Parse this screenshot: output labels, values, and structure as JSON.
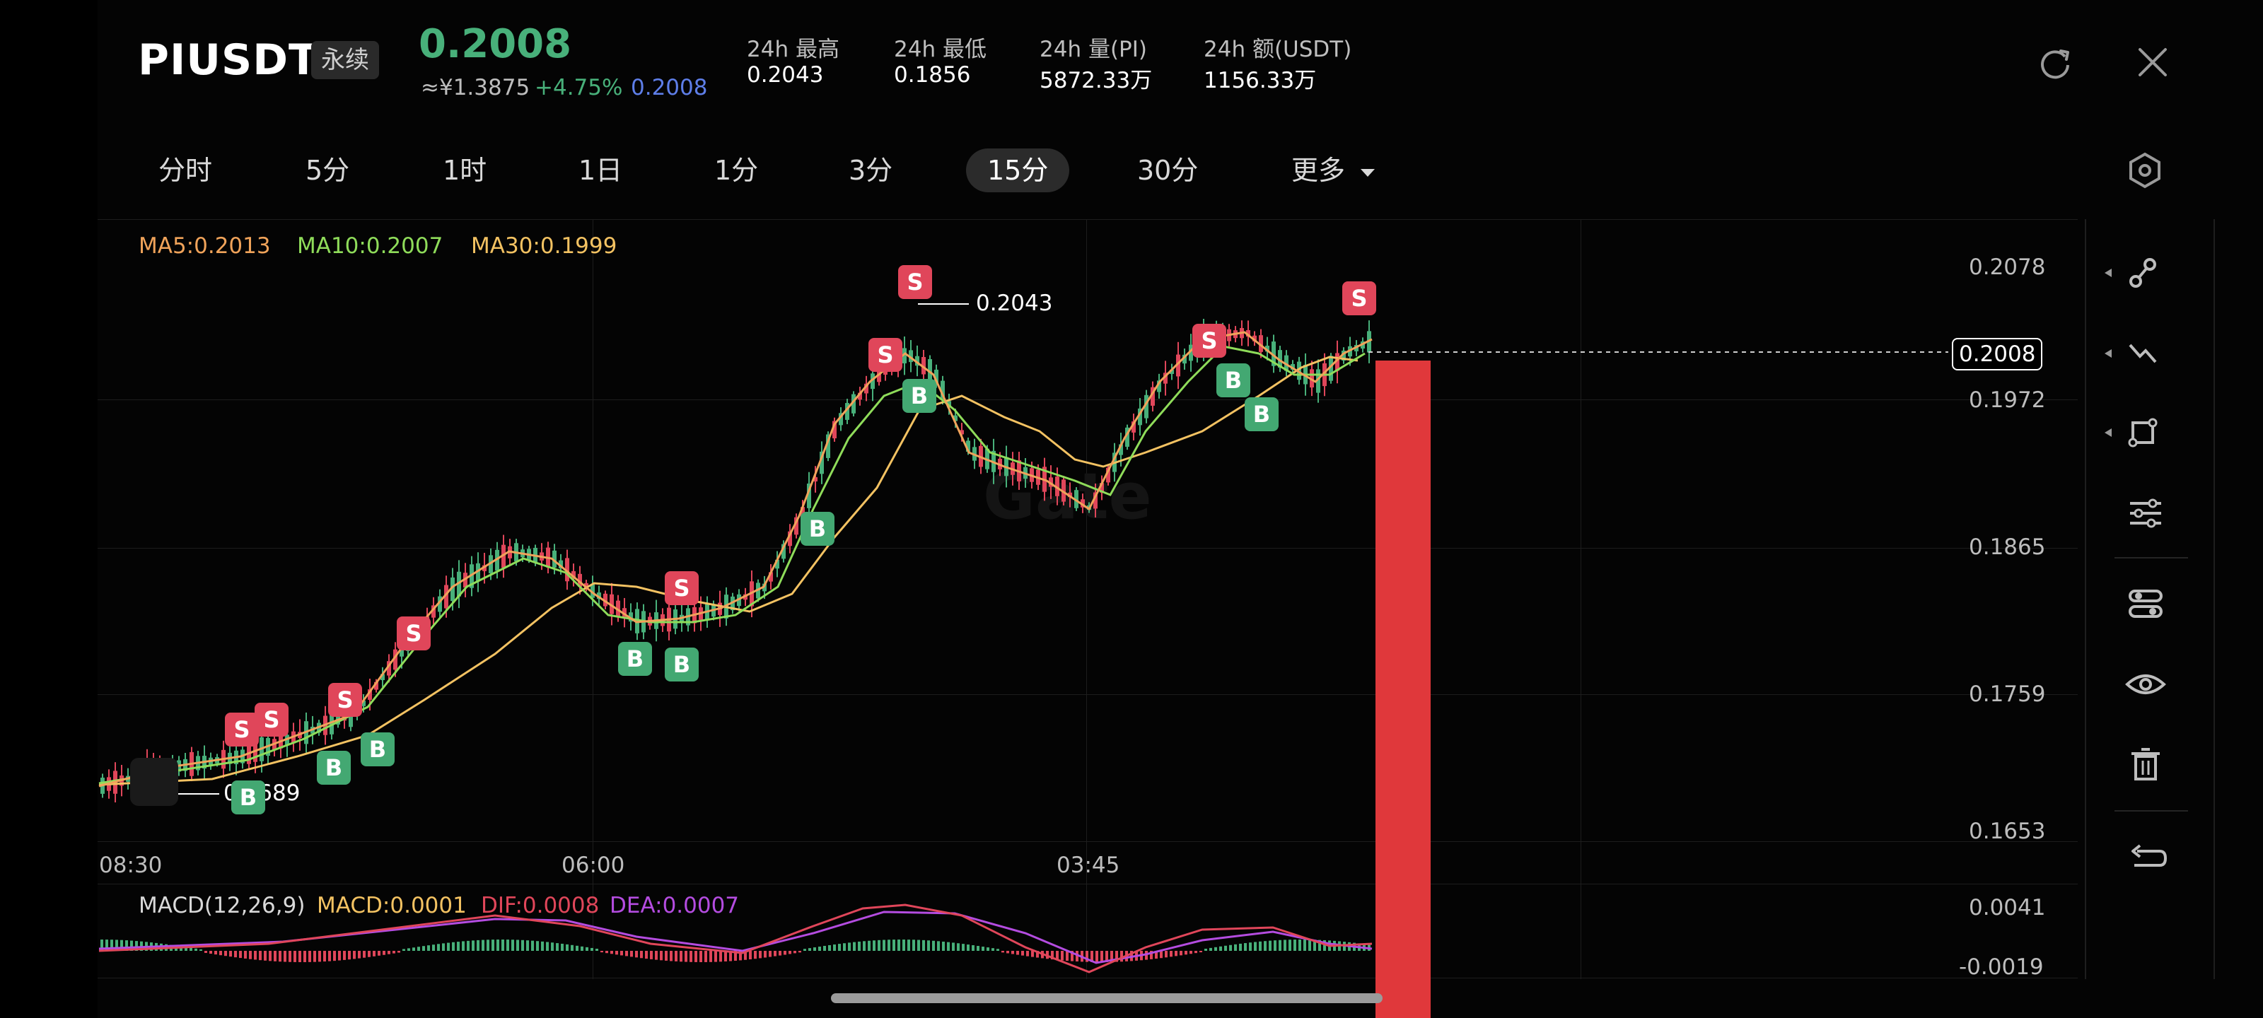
{
  "header": {
    "symbol": "PIUSDT",
    "contract_type": "永续",
    "last_price": "0.2008",
    "cny_price": "≈¥1.3875",
    "change_pct": "+4.75%",
    "mark_price": "0.2008",
    "stats": [
      {
        "label": "24h  最高",
        "value": "0.2043"
      },
      {
        "label": "24h  最低",
        "value": "0.1856"
      },
      {
        "label": "24h  量(PI)",
        "value": "5872.33万"
      },
      {
        "label": "24h  额(USDT)",
        "value": "1156.33万"
      }
    ],
    "icons": [
      "rotate-icon",
      "close-icon"
    ]
  },
  "timeframes": {
    "items": [
      "分时",
      "5分",
      "1时",
      "1日",
      "1分",
      "3分",
      "15分",
      "30分",
      "更多"
    ],
    "active": "15分"
  },
  "ma_legend": {
    "ma5": "MA5:0.2013",
    "ma10": "MA10:0.2007",
    "ma30": "MA30:0.1999"
  },
  "colors": {
    "up": "#48b07a",
    "down": "#e0465a",
    "ma5": "#f0a35a",
    "ma10": "#8fdc5a",
    "ma30": "#f3c262",
    "dif": "#e0465a",
    "dea": "#b44ce0",
    "macd": "#f3c262",
    "accent_blue": "#5e7ee8"
  },
  "price_axis": {
    "ticks": [
      "0.2078",
      "0.1972",
      "0.1865",
      "0.1759",
      "0.1653"
    ],
    "current_price_tag": "0.2008"
  },
  "time_axis": {
    "ticks": [
      "08:30",
      "06:00",
      "03:45"
    ]
  },
  "annotations": {
    "high": "0.2043",
    "low": "0.1689"
  },
  "macd": {
    "params": "MACD(12,26,9)",
    "macd": "MACD:0.0001",
    "dif": "DIF:0.0008",
    "dea": "DEA:0.0007",
    "ticks": [
      "0.0041",
      "-0.0019"
    ]
  },
  "signals": [
    {
      "type": "S",
      "label": "S"
    },
    {
      "type": "S",
      "label": "S"
    },
    {
      "type": "S",
      "label": "S"
    },
    {
      "type": "S",
      "label": "S"
    },
    {
      "type": "S",
      "label": "S"
    },
    {
      "type": "S",
      "label": "S"
    },
    {
      "type": "S",
      "label": "S"
    },
    {
      "type": "S",
      "label": "S"
    },
    {
      "type": "S",
      "label": "S"
    },
    {
      "type": "B",
      "label": "B"
    },
    {
      "type": "B",
      "label": "B"
    },
    {
      "type": "B",
      "label": "B"
    },
    {
      "type": "B",
      "label": "B"
    },
    {
      "type": "B",
      "label": "B"
    },
    {
      "type": "B",
      "label": "B"
    },
    {
      "type": "B",
      "label": "B"
    },
    {
      "type": "B",
      "label": "B"
    },
    {
      "type": "B",
      "label": "B"
    }
  ],
  "toolbar_icons": [
    "trend-line-icon",
    "multi-line-icon",
    "shape-icon",
    "settings-sliders-icon",
    "layers-toggle-icon",
    "eye-icon",
    "trash-icon",
    "undo-icon"
  ]
}
